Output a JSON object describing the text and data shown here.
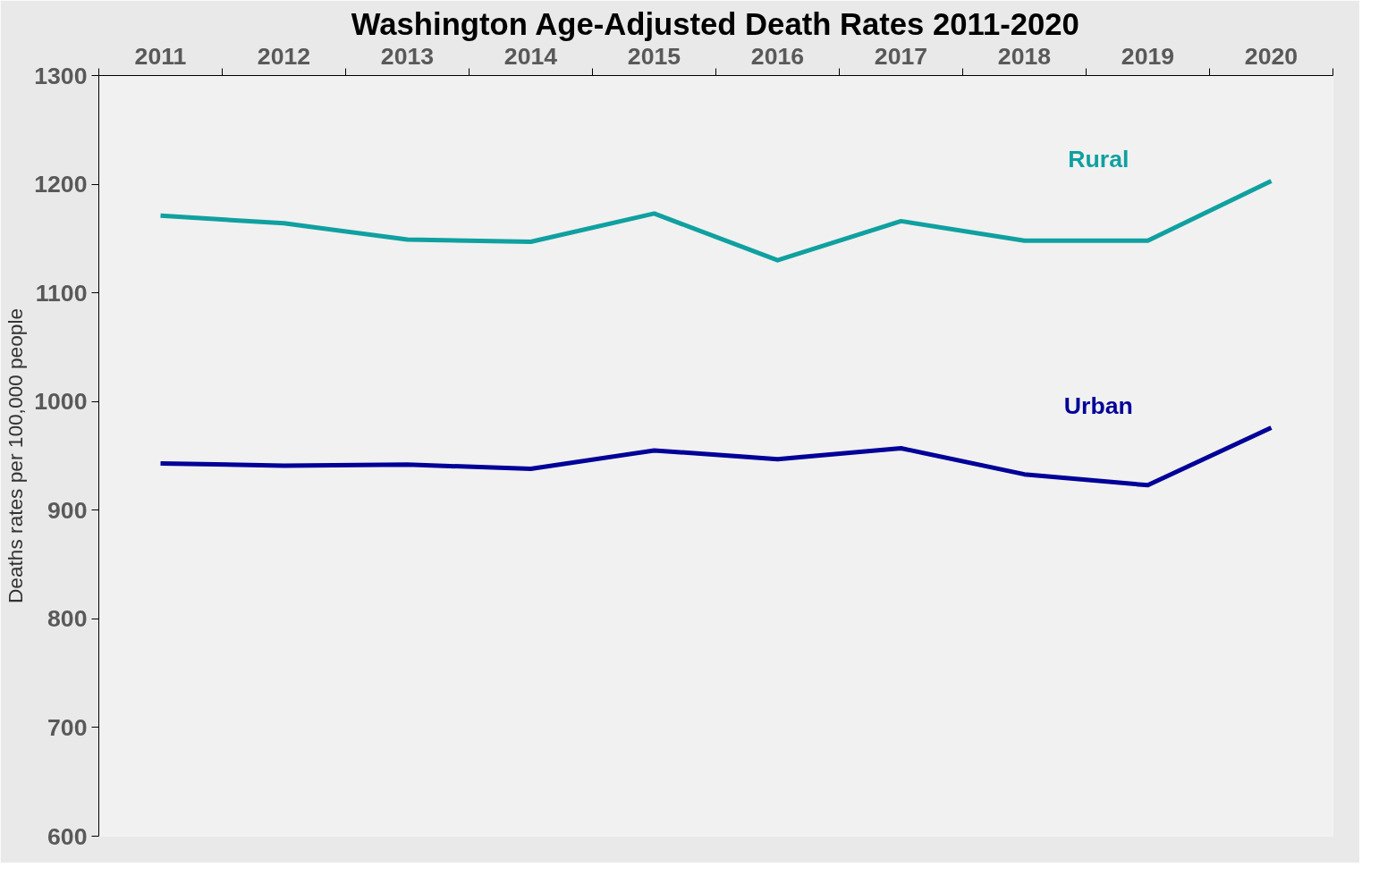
{
  "chart_data": {
    "type": "line",
    "title": "Washington Age-Adjusted Death Rates 2011-2020",
    "ylabel": "Deaths rates per 100,000 people",
    "categories": [
      "2011",
      "2012",
      "2013",
      "2014",
      "2015",
      "2016",
      "2017",
      "2018",
      "2019",
      "2020"
    ],
    "series": [
      {
        "name": "Rural",
        "color": "#10a0a0",
        "values": [
          1171,
          1164,
          1149,
          1147,
          1173,
          1130,
          1166,
          1148,
          1148,
          1203
        ]
      },
      {
        "name": "Urban",
        "color": "#000099",
        "values": [
          943,
          941,
          942,
          938,
          955,
          947,
          957,
          933,
          923,
          976
        ]
      }
    ],
    "ylim": [
      600,
      1300
    ],
    "yticks": [
      600,
      700,
      800,
      900,
      1000,
      1100,
      1200,
      1300
    ],
    "grid": false,
    "marker": "none",
    "line_style": "solid"
  }
}
